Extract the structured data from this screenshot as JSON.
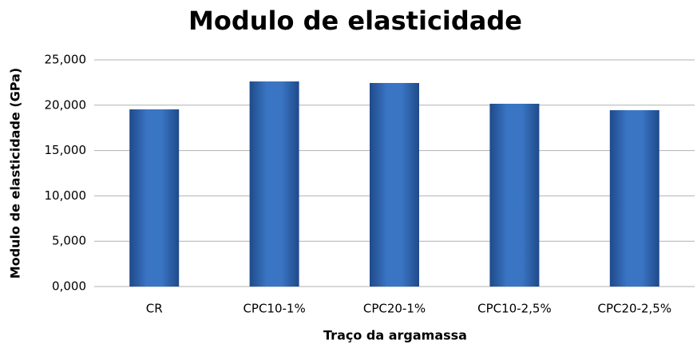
{
  "chart_data": {
    "type": "bar",
    "title": "Modulo de elasticidade",
    "x_label": "Traço da argamassa",
    "y_label": "Modulo de elasticidade (GPa)",
    "categories": [
      "CR",
      "CPC10-1%",
      "CPC20-1%",
      "CPC10-2,5%",
      "CPC20-2,5%"
    ],
    "values": [
      19.54,
      22.62,
      22.45,
      20.16,
      19.45
    ],
    "color": "#3a75c4",
    "ylim": [
      0,
      25
    ],
    "yticks": [
      {
        "value": 0,
        "label": "0,000"
      },
      {
        "value": 5,
        "label": "5,000"
      },
      {
        "value": 10,
        "label": "10,000"
      },
      {
        "value": 15,
        "label": "15,000"
      },
      {
        "value": 20,
        "label": "20,000"
      },
      {
        "value": 25,
        "label": "25,000"
      }
    ],
    "grid": true
  }
}
